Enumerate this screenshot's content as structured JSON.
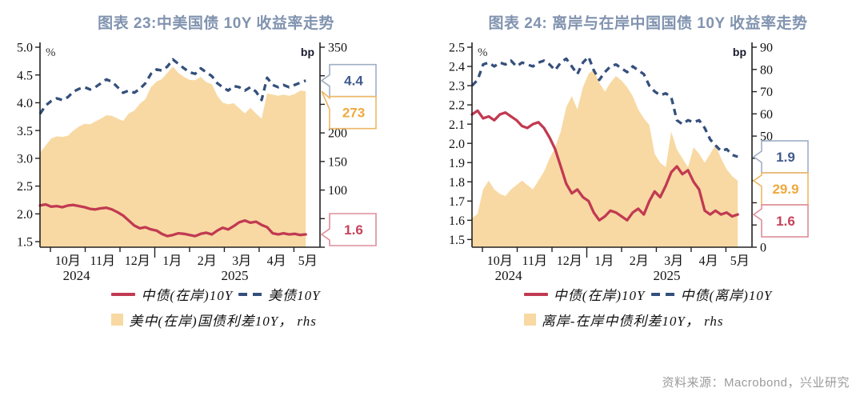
{
  "source": "资料来源：Macrobond，兴业研究",
  "colors": {
    "title": "#8193AF",
    "red_line": "#C13A52",
    "navy_line": "#34507C",
    "area_fill": "#F8D9A3",
    "axis": "#222222",
    "source_text": "#9B9B9B"
  },
  "chart_data": [
    {
      "type": "line",
      "title": "图表 23:中美国债 10Y 收益率走势",
      "unit_left": "%",
      "unit_right": "bp",
      "xlim": [
        0.7,
        8.75
      ],
      "xticks": [
        1,
        2,
        3,
        4,
        5,
        6,
        7,
        8
      ],
      "xticklabels": [
        "10月",
        "11月",
        "12月",
        "1月",
        "2月",
        "3月",
        "4月",
        "5月"
      ],
      "year_ticks_long": [
        4
      ],
      "year_labels": [
        {
          "text": "2024",
          "x": 1.75
        },
        {
          "text": "2025",
          "x": 6.3
        }
      ],
      "ylim_left": [
        1.4,
        5.0
      ],
      "yticks_left": [
        "1.5",
        "2.0",
        "2.5",
        "3.0",
        "3.5",
        "4.0",
        "4.5",
        "5.0"
      ],
      "ylim_right": [
        0,
        350
      ],
      "yticks_right": [
        "0",
        "50",
        "100",
        "150",
        "200",
        "250",
        "300",
        "350"
      ],
      "x": [
        0.7,
        0.86,
        1.02,
        1.18,
        1.34,
        1.5,
        1.66,
        1.82,
        1.98,
        2.14,
        2.29,
        2.45,
        2.61,
        2.77,
        2.93,
        3.09,
        3.25,
        3.41,
        3.57,
        3.73,
        3.89,
        4.05,
        4.2,
        4.36,
        4.52,
        4.68,
        4.84,
        5.0,
        5.16,
        5.32,
        5.48,
        5.64,
        5.8,
        5.95,
        6.11,
        6.27,
        6.43,
        6.59,
        6.75,
        6.91,
        7.07,
        7.23,
        7.39,
        7.55,
        7.7,
        7.86,
        8.02,
        8.18,
        8.34
      ],
      "series": [
        {
          "name": "中债(在岸)10Y",
          "axis": "left",
          "style": "solid",
          "color": "#C13A52",
          "values": [
            2.15,
            2.17,
            2.13,
            2.14,
            2.12,
            2.15,
            2.16,
            2.14,
            2.12,
            2.09,
            2.08,
            2.1,
            2.11,
            2.08,
            2.03,
            1.97,
            1.88,
            1.79,
            1.74,
            1.76,
            1.72,
            1.7,
            1.64,
            1.6,
            1.62,
            1.65,
            1.64,
            1.62,
            1.6,
            1.64,
            1.66,
            1.63,
            1.7,
            1.75,
            1.72,
            1.78,
            1.85,
            1.88,
            1.84,
            1.86,
            1.8,
            1.76,
            1.65,
            1.63,
            1.65,
            1.63,
            1.64,
            1.62,
            1.63
          ]
        },
        {
          "name": "美债10Y",
          "axis": "left",
          "style": "dashed",
          "color": "#34507C",
          "values": [
            3.8,
            3.95,
            4.03,
            4.08,
            4.05,
            4.1,
            4.2,
            4.25,
            4.28,
            4.24,
            4.28,
            4.35,
            4.42,
            4.38,
            4.28,
            4.18,
            4.22,
            4.18,
            4.25,
            4.35,
            4.52,
            4.6,
            4.58,
            4.65,
            4.78,
            4.7,
            4.62,
            4.55,
            4.52,
            4.62,
            4.55,
            4.48,
            4.35,
            4.28,
            4.22,
            4.3,
            4.28,
            4.22,
            4.28,
            4.2,
            4.05,
            4.45,
            4.32,
            4.28,
            4.32,
            4.28,
            4.32,
            4.36,
            4.4
          ]
        },
        {
          "name": "美中(在岸)国债利差10Y， rhs",
          "axis": "right",
          "style": "area",
          "color": "#F8D9A3",
          "values": [
            165,
            178,
            190,
            194,
            193,
            195,
            204,
            211,
            216,
            215,
            220,
            225,
            231,
            230,
            225,
            221,
            234,
            239,
            251,
            259,
            280,
            290,
            294,
            305,
            316,
            305,
            298,
            293,
            292,
            298,
            289,
            285,
            265,
            253,
            250,
            252,
            243,
            234,
            244,
            234,
            225,
            269,
            267,
            265,
            267,
            265,
            268,
            274,
            273
          ]
        }
      ],
      "callouts": [
        {
          "label": "4.4",
          "series": 1,
          "border": "#9FAEC6",
          "text": "#3F5B8C"
        },
        {
          "label": "273",
          "series": 2,
          "border": "#EEB765",
          "text": "#EFA93F"
        },
        {
          "label": "1.6",
          "series": 0,
          "border": "#DE8D9B",
          "text": "#C6425A"
        }
      ]
    },
    {
      "type": "line",
      "title": "图表 24: 离岸与在岸中国国债 10Y 收益率走势",
      "unit_left": "%",
      "unit_right": "bp",
      "xlim": [
        0.7,
        8.75
      ],
      "xticks": [
        1,
        2,
        3,
        4,
        5,
        6,
        7,
        8
      ],
      "xticklabels": [
        "10月",
        "11月",
        "12月",
        "1月",
        "2月",
        "3月",
        "4月",
        "5月"
      ],
      "year_ticks_long": [
        4
      ],
      "year_labels": [
        {
          "text": "2024",
          "x": 1.75
        },
        {
          "text": "2025",
          "x": 6.3
        }
      ],
      "ylim_left": [
        1.46,
        2.5
      ],
      "yticks_left": [
        "1.5",
        "1.6",
        "1.7",
        "1.8",
        "1.9",
        "2.0",
        "2.1",
        "2.2",
        "2.3",
        "2.4",
        "2.5"
      ],
      "ylim_right": [
        0,
        90
      ],
      "yticks_right": [
        "0",
        "10",
        "20",
        "30",
        "40",
        "50",
        "60",
        "70",
        "80",
        "90"
      ],
      "x": [
        0.7,
        0.86,
        1.02,
        1.18,
        1.34,
        1.5,
        1.66,
        1.82,
        1.98,
        2.14,
        2.29,
        2.45,
        2.61,
        2.77,
        2.93,
        3.09,
        3.25,
        3.41,
        3.57,
        3.73,
        3.89,
        4.05,
        4.2,
        4.36,
        4.52,
        4.68,
        4.84,
        5.0,
        5.16,
        5.32,
        5.48,
        5.64,
        5.8,
        5.95,
        6.11,
        6.27,
        6.43,
        6.59,
        6.75,
        6.91,
        7.07,
        7.23,
        7.39,
        7.55,
        7.7,
        7.86,
        8.02,
        8.18,
        8.34
      ],
      "series": [
        {
          "name": "中债(在岸)10Y",
          "axis": "left",
          "style": "solid",
          "color": "#C13A52",
          "values": [
            2.15,
            2.17,
            2.13,
            2.14,
            2.12,
            2.15,
            2.16,
            2.14,
            2.12,
            2.09,
            2.08,
            2.1,
            2.11,
            2.08,
            2.03,
            1.97,
            1.88,
            1.79,
            1.74,
            1.76,
            1.72,
            1.7,
            1.64,
            1.6,
            1.62,
            1.65,
            1.64,
            1.62,
            1.6,
            1.64,
            1.66,
            1.63,
            1.7,
            1.75,
            1.72,
            1.78,
            1.85,
            1.88,
            1.84,
            1.86,
            1.8,
            1.76,
            1.65,
            1.63,
            1.65,
            1.63,
            1.64,
            1.62,
            1.63
          ]
        },
        {
          "name": "中债(离岸)10Y",
          "axis": "left",
          "style": "dashed",
          "color": "#34507C",
          "values": [
            2.3,
            2.33,
            2.41,
            2.42,
            2.4,
            2.42,
            2.41,
            2.43,
            2.4,
            2.42,
            2.41,
            2.4,
            2.42,
            2.43,
            2.41,
            2.38,
            2.42,
            2.44,
            2.4,
            2.36,
            2.42,
            2.45,
            2.38,
            2.33,
            2.37,
            2.4,
            2.41,
            2.39,
            2.37,
            2.4,
            2.38,
            2.36,
            2.3,
            2.27,
            2.25,
            2.26,
            2.24,
            2.12,
            2.1,
            2.12,
            2.11,
            2.12,
            2.08,
            2.02,
            1.99,
            1.96,
            1.97,
            1.94,
            1.93
          ]
        },
        {
          "name": "离岸-在岸中债利差10Y， rhs",
          "axis": "right",
          "style": "area",
          "color": "#F8D9A3",
          "values": [
            13,
            15,
            26,
            30,
            26,
            24,
            23,
            26,
            28,
            30,
            28,
            26,
            30,
            34,
            40,
            45,
            52,
            63,
            68,
            62,
            72,
            78,
            80,
            74,
            70,
            74,
            77,
            75,
            72,
            68,
            62,
            58,
            55,
            42,
            38,
            36,
            52,
            44,
            40,
            36,
            45,
            42,
            38,
            42,
            46,
            40,
            35,
            32,
            29.9
          ]
        }
      ],
      "callouts": [
        {
          "label": "1.9",
          "series": 1,
          "border": "#9FAEC6",
          "text": "#3F5B8C"
        },
        {
          "label": "29.9",
          "series": 2,
          "border": "#EEB765",
          "text": "#EFA93F"
        },
        {
          "label": "1.6",
          "series": 0,
          "border": "#DE8D9B",
          "text": "#C6425A"
        }
      ]
    }
  ]
}
